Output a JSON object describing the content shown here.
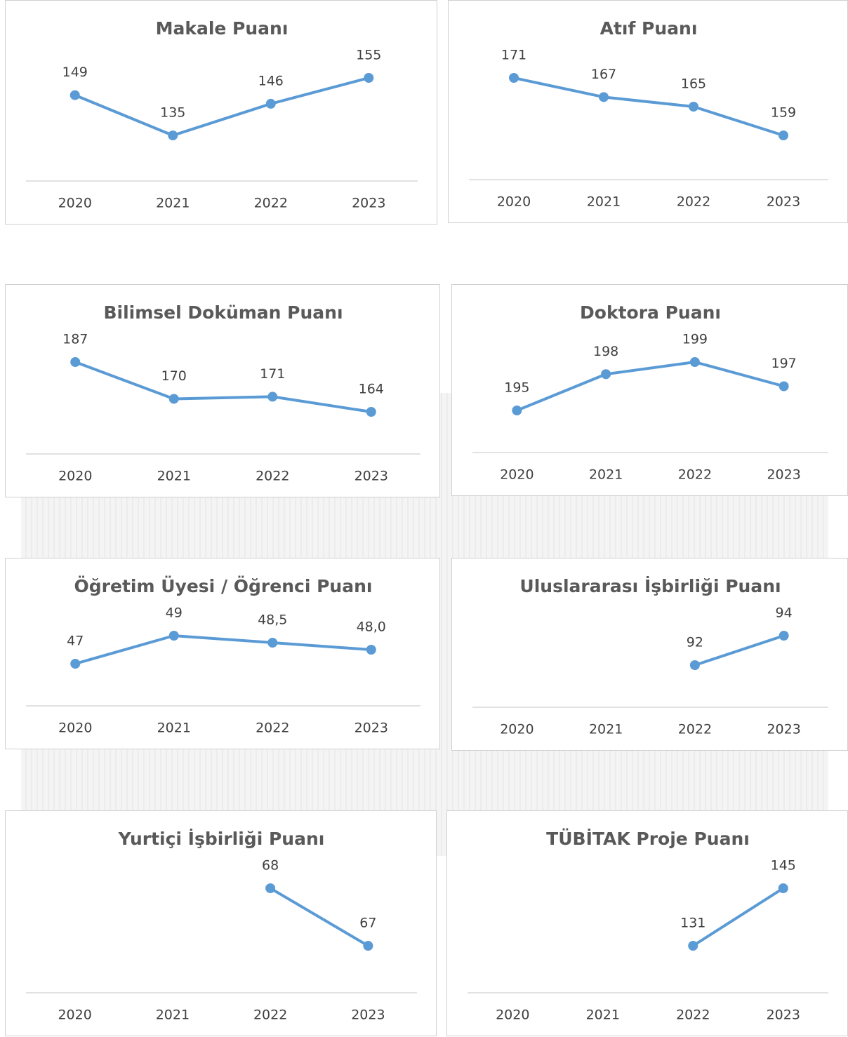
{
  "chart_data": [
    {
      "type": "line",
      "title": "Makale Puanı",
      "categories": [
        "2020",
        "2021",
        "2022",
        "2023"
      ],
      "values": [
        149,
        135,
        146,
        155
      ],
      "color": "#5b9bd5"
    },
    {
      "type": "line",
      "title": "Atıf Puanı",
      "categories": [
        "2020",
        "2021",
        "2022",
        "2023"
      ],
      "values": [
        171,
        167,
        165,
        159
      ],
      "color": "#5b9bd5"
    },
    {
      "type": "line",
      "title": "Bilimsel Doküman Puanı",
      "categories": [
        "2020",
        "2021",
        "2022",
        "2023"
      ],
      "values": [
        187,
        170,
        171,
        164
      ],
      "color": "#5b9bd5"
    },
    {
      "type": "line",
      "title": "Doktora Puanı",
      "categories": [
        "2020",
        "2021",
        "2022",
        "2023"
      ],
      "values": [
        195,
        198,
        199,
        197
      ],
      "color": "#5b9bd5"
    },
    {
      "type": "line",
      "title": "Öğretim Üyesi / Öğrenci Puanı",
      "categories": [
        "2020",
        "2021",
        "2022",
        "2023"
      ],
      "values": [
        47,
        49,
        48.5,
        48.0
      ],
      "value_labels": [
        "47",
        "49",
        "48,5",
        "48,0"
      ],
      "color": "#5b9bd5"
    },
    {
      "type": "line",
      "title": "Uluslararası İşbirliği Puanı",
      "categories": [
        "2020",
        "2021",
        "2022",
        "2023"
      ],
      "values": [
        null,
        null,
        92,
        94
      ],
      "color": "#5b9bd5"
    },
    {
      "type": "line",
      "title": "Yurtiçi İşbirliği Puanı",
      "categories": [
        "2020",
        "2021",
        "2022",
        "2023"
      ],
      "values": [
        null,
        null,
        68,
        67
      ],
      "color": "#5b9bd5"
    },
    {
      "type": "line",
      "title": "TÜBİTAK Proje Puanı",
      "categories": [
        "2020",
        "2021",
        "2022",
        "2023"
      ],
      "values": [
        null,
        null,
        131,
        145
      ],
      "color": "#5b9bd5"
    }
  ]
}
